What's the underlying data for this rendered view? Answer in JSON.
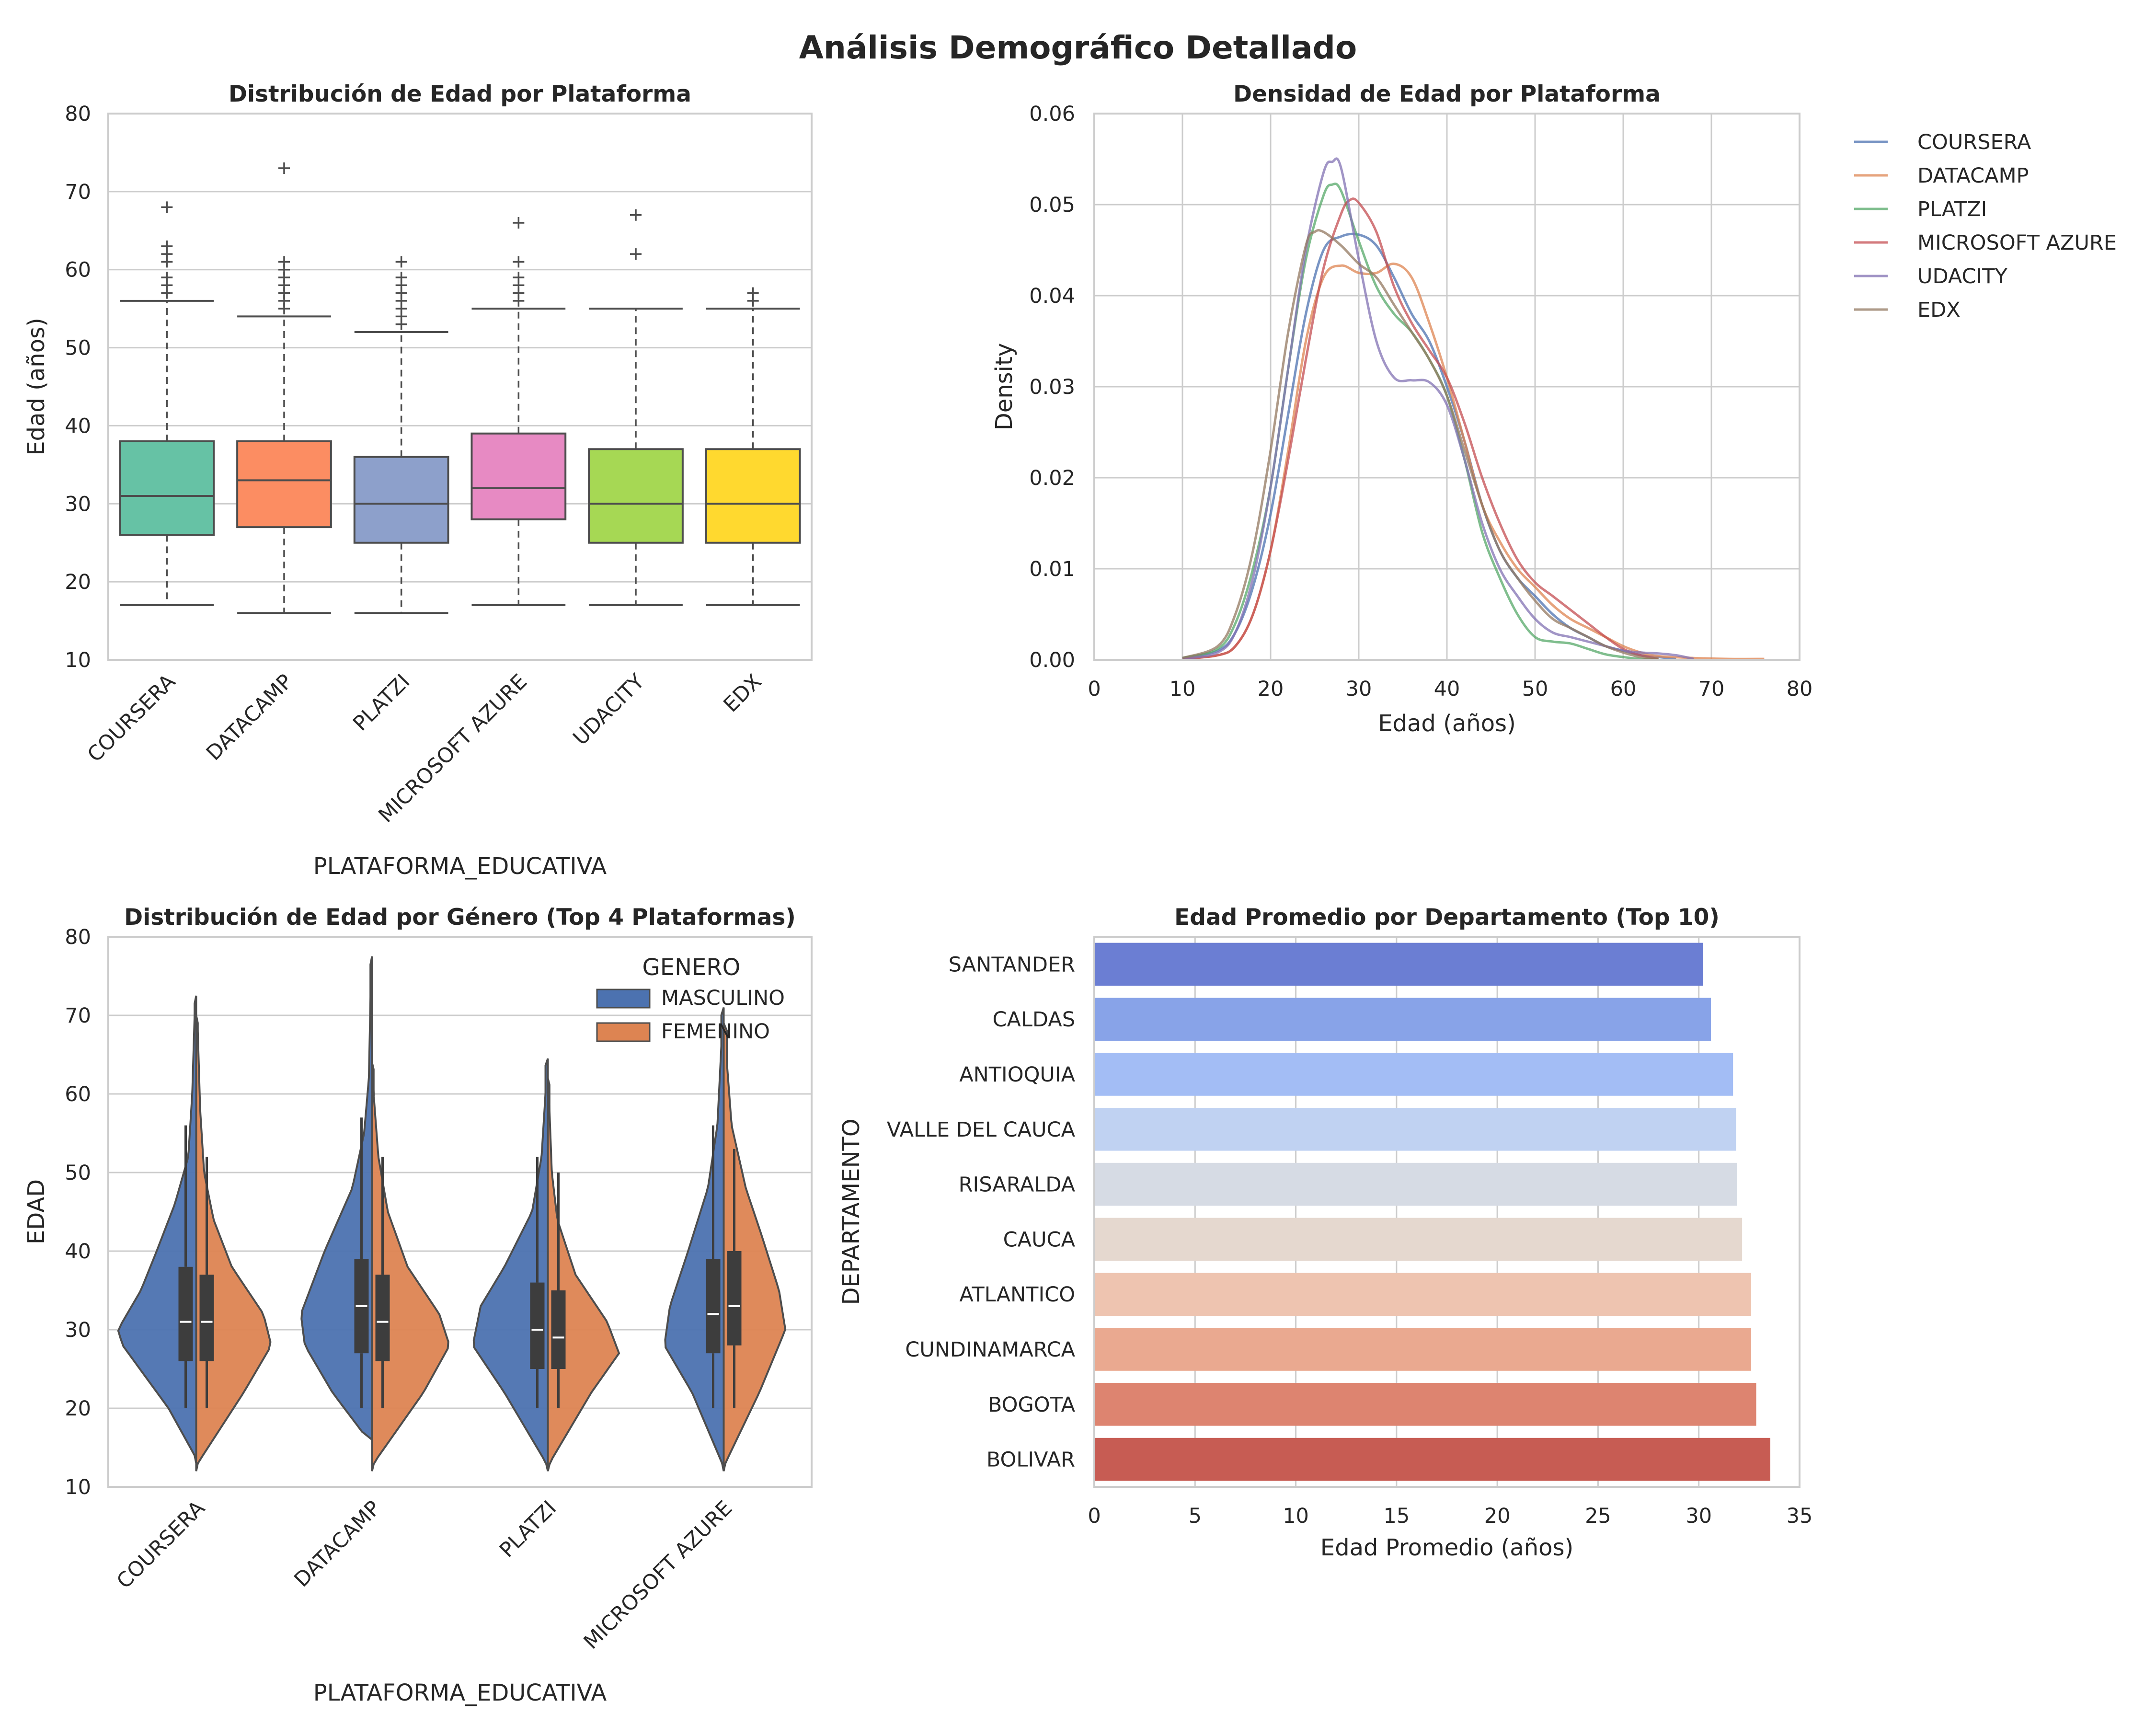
{
  "title": "Análisis Demográfico Detallado",
  "chart_data": [
    {
      "type": "box",
      "title": "Distribución de Edad por Plataforma",
      "xlabel": "PLATAFORMA_EDUCATIVA",
      "ylabel": "Edad (años)",
      "ylim": [
        10,
        80
      ],
      "yticks": [
        10,
        20,
        30,
        40,
        50,
        60,
        70,
        80
      ],
      "grid": "y",
      "categories": [
        "COURSERA",
        "DATACAMP",
        "PLATZI",
        "MICROSOFT AZURE",
        "UDACITY",
        "EDX"
      ],
      "colors": [
        "#66c2a5",
        "#fc8d62",
        "#8da0cb",
        "#e78ac3",
        "#a6d854",
        "#ffd92f"
      ],
      "boxes": [
        {
          "min": 17,
          "q1": 26,
          "median": 31,
          "q3": 38,
          "max": 56,
          "outliers": [
            57,
            58,
            59,
            61,
            62,
            63,
            68
          ]
        },
        {
          "min": 16,
          "q1": 27,
          "median": 33,
          "q3": 38,
          "max": 54,
          "outliers": [
            55,
            56,
            57,
            58,
            59,
            60,
            61,
            73
          ]
        },
        {
          "min": 16,
          "q1": 25,
          "median": 30,
          "q3": 36,
          "max": 52,
          "outliers": [
            53,
            54,
            55,
            56,
            57,
            58,
            59,
            61
          ]
        },
        {
          "min": 17,
          "q1": 28,
          "median": 32,
          "q3": 39,
          "max": 55,
          "outliers": [
            56,
            57,
            58,
            59,
            61,
            66
          ]
        },
        {
          "min": 17,
          "q1": 25,
          "median": 30,
          "q3": 37,
          "max": 55,
          "outliers": [
            62,
            67
          ]
        },
        {
          "min": 17,
          "q1": 25,
          "median": 30,
          "q3": 37,
          "max": 55,
          "outliers": [
            56,
            57
          ]
        }
      ]
    },
    {
      "type": "line",
      "title": "Densidad de Edad por Plataforma",
      "xlabel": "Edad (años)",
      "ylabel": "Density",
      "xlim": [
        0,
        80
      ],
      "ylim": [
        0,
        0.06
      ],
      "xticks": [
        0,
        10,
        20,
        30,
        40,
        50,
        60,
        70,
        80
      ],
      "yticks": [
        "0.00",
        "0.01",
        "0.02",
        "0.03",
        "0.04",
        "0.05",
        "0.06"
      ],
      "grid": "both",
      "legend": "outside-right",
      "series": [
        {
          "name": "COURSERA",
          "color": "#4c72b0",
          "x": [
            10,
            14,
            16,
            18,
            20,
            22,
            24,
            26,
            28,
            30,
            32,
            34,
            36,
            38,
            40,
            42,
            44,
            46,
            48,
            50,
            52,
            54,
            56,
            58,
            60,
            62,
            64,
            66
          ],
          "y": [
            0.0002,
            0.001,
            0.003,
            0.008,
            0.016,
            0.027,
            0.038,
            0.045,
            0.0465,
            0.0467,
            0.0455,
            0.042,
            0.038,
            0.035,
            0.03,
            0.024,
            0.017,
            0.012,
            0.009,
            0.007,
            0.005,
            0.0035,
            0.0025,
            0.0015,
            0.001,
            0.0005,
            0.0003,
            0.0001
          ]
        },
        {
          "name": "DATACAMP",
          "color": "#dd8452",
          "x": [
            10,
            14,
            16,
            18,
            20,
            22,
            24,
            26,
            28,
            30,
            32,
            34,
            36,
            38,
            40,
            42,
            44,
            46,
            48,
            50,
            52,
            54,
            56,
            58,
            60,
            62,
            64,
            68,
            72,
            76
          ],
          "y": [
            0.0001,
            0.0005,
            0.0015,
            0.005,
            0.012,
            0.023,
            0.035,
            0.042,
            0.0433,
            0.0425,
            0.0425,
            0.0435,
            0.042,
            0.037,
            0.031,
            0.024,
            0.017,
            0.013,
            0.01,
            0.008,
            0.006,
            0.0045,
            0.0035,
            0.0025,
            0.0015,
            0.0008,
            0.0004,
            0.0002,
            0.0001,
            0.0001
          ]
        },
        {
          "name": "PLATZI",
          "color": "#55a868",
          "x": [
            10,
            14,
            16,
            18,
            20,
            22,
            24,
            26,
            27,
            28,
            30,
            32,
            34,
            36,
            38,
            40,
            42,
            44,
            46,
            48,
            50,
            52,
            54,
            56,
            58,
            60,
            62,
            64
          ],
          "y": [
            0.0002,
            0.0012,
            0.004,
            0.01,
            0.019,
            0.032,
            0.044,
            0.051,
            0.0522,
            0.0515,
            0.046,
            0.041,
            0.038,
            0.036,
            0.033,
            0.029,
            0.022,
            0.014,
            0.009,
            0.005,
            0.0025,
            0.002,
            0.0018,
            0.0012,
            0.0006,
            0.0003,
            0.0001,
            0.0001
          ]
        },
        {
          "name": "MICROSOFT AZURE",
          "color": "#c44e52",
          "x": [
            10,
            14,
            16,
            18,
            20,
            22,
            24,
            26,
            28,
            29,
            30,
            32,
            34,
            36,
            38,
            40,
            42,
            44,
            46,
            48,
            50,
            52,
            54,
            56,
            58,
            60,
            62,
            64
          ],
          "y": [
            0.0001,
            0.0005,
            0.0015,
            0.005,
            0.012,
            0.022,
            0.033,
            0.043,
            0.049,
            0.0505,
            0.0502,
            0.047,
            0.041,
            0.037,
            0.034,
            0.031,
            0.026,
            0.02,
            0.015,
            0.011,
            0.0085,
            0.007,
            0.0055,
            0.004,
            0.0025,
            0.0012,
            0.0005,
            0.0001
          ]
        },
        {
          "name": "UDACITY",
          "color": "#8172b3",
          "x": [
            10,
            14,
            16,
            18,
            20,
            22,
            24,
            26,
            27,
            28,
            30,
            32,
            34,
            36,
            38,
            40,
            42,
            44,
            46,
            48,
            50,
            52,
            54,
            56,
            58,
            60,
            62,
            64,
            66,
            68
          ],
          "y": [
            0.0001,
            0.0008,
            0.003,
            0.009,
            0.019,
            0.032,
            0.045,
            0.0535,
            0.0547,
            0.054,
            0.044,
            0.035,
            0.031,
            0.0307,
            0.0305,
            0.028,
            0.022,
            0.015,
            0.01,
            0.007,
            0.0045,
            0.003,
            0.0025,
            0.002,
            0.0015,
            0.001,
            0.0008,
            0.0007,
            0.0005,
            0.0001
          ]
        },
        {
          "name": "EDX",
          "color": "#937860",
          "x": [
            10,
            14,
            16,
            18,
            20,
            22,
            24,
            25,
            26,
            28,
            30,
            32,
            34,
            36,
            38,
            40,
            42,
            44,
            46,
            48,
            50,
            52,
            54,
            56,
            58,
            60,
            62,
            64
          ],
          "y": [
            0.0002,
            0.0015,
            0.005,
            0.012,
            0.023,
            0.036,
            0.0455,
            0.047,
            0.047,
            0.0455,
            0.0435,
            0.042,
            0.039,
            0.036,
            0.033,
            0.029,
            0.023,
            0.017,
            0.012,
            0.009,
            0.0065,
            0.0045,
            0.0035,
            0.0025,
            0.0015,
            0.0008,
            0.0003,
            0.0001
          ]
        }
      ]
    },
    {
      "type": "violin",
      "title": "Distribución de Edad por Género (Top 4 Plataformas)",
      "xlabel": "PLATAFORMA_EDUCATIVA",
      "ylabel": "EDAD",
      "ylim": [
        10,
        80
      ],
      "yticks": [
        10,
        20,
        30,
        40,
        50,
        60,
        70,
        80
      ],
      "grid": "y",
      "legend": {
        "title": "GENERO",
        "position": "top-right"
      },
      "categories": [
        "COURSERA",
        "DATACAMP",
        "PLATZI",
        "MICROSOFT AZURE"
      ],
      "hue": [
        {
          "name": "MASCULINO",
          "color": "#4c72b0"
        },
        {
          "name": "FEMENINO",
          "color": "#dd8452"
        }
      ],
      "violins": [
        {
          "masculino": {
            "min": 13,
            "max": 72.5,
            "q1": 26,
            "median": 31,
            "q3": 38,
            "whisker_hi": 56,
            "width": [
              0.02,
              0.35,
              0.93,
              0.99,
              0.7,
              0.5,
              0.27,
              0.1,
              0.05,
              0.02
            ],
            "width_y": [
              14,
              20,
              28,
              30,
              35,
              40,
              46,
              52,
              60,
              70
            ]
          },
          "femenino": {
            "min": 12,
            "max": 70,
            "q1": 26,
            "median": 31,
            "q3": 37,
            "whisker_hi": 52,
            "width": [
              0.02,
              0.6,
              0.95,
              0.85,
              0.45,
              0.22,
              0.1,
              0.05,
              0.02
            ],
            "width_y": [
              13,
              22,
              28,
              32,
              38,
              44,
              50,
              58,
              68
            ]
          }
        },
        {
          "masculino": {
            "min": 16,
            "max": 77.5,
            "q1": 27,
            "median": 33,
            "q3": 39,
            "whisker_hi": 57,
            "width": [
              0.05,
              0.5,
              0.85,
              0.9,
              0.6,
              0.25,
              0.1,
              0.04,
              0.02
            ],
            "width_y": [
              16,
              22,
              28,
              32,
              40,
              48,
              55,
              62,
              72
            ]
          },
          "femenino": {
            "min": 12,
            "max": 64,
            "q1": 26,
            "median": 31,
            "q3": 37,
            "whisker_hi": 52,
            "width": [
              0.02,
              0.65,
              0.98,
              0.85,
              0.45,
              0.2,
              0.08,
              0.02
            ],
            "width_y": [
              13,
              22,
              28,
              32,
              38,
              45,
              52,
              60
            ]
          }
        },
        {
          "masculino": {
            "min": 12,
            "max": 64.5,
            "q1": 25,
            "median": 30,
            "q3": 36,
            "whisker_hi": 52,
            "width": [
              0.02,
              0.55,
              0.95,
              0.85,
              0.55,
              0.2,
              0.08,
              0.03
            ],
            "width_y": [
              13,
              22,
              28,
              33,
              38,
              45,
              52,
              60
            ]
          },
          "femenino": {
            "min": 12,
            "max": 62,
            "q1": 25,
            "median": 29,
            "q3": 35,
            "whisker_hi": 50,
            "width": [
              0.02,
              0.55,
              0.9,
              0.75,
              0.35,
              0.12,
              0.05,
              0.02
            ],
            "width_y": [
              13,
              22,
              27,
              31,
              37,
              44,
              50,
              58
            ]
          }
        },
        {
          "masculino": {
            "min": 12,
            "max": 71,
            "q1": 27,
            "median": 32,
            "q3": 39,
            "whisker_hi": 56,
            "width": [
              0.02,
              0.4,
              0.75,
              0.68,
              0.45,
              0.2,
              0.08,
              0.03
            ],
            "width_y": [
              13,
              22,
              28,
              33,
              40,
              48,
              56,
              66
            ]
          },
          "femenino": {
            "min": 12,
            "max": 69,
            "q1": 28,
            "median": 33,
            "q3": 40,
            "whisker_hi": 53,
            "width": [
              0.02,
              0.45,
              0.78,
              0.7,
              0.48,
              0.28,
              0.1,
              0.04
            ],
            "width_y": [
              13,
              22,
              30,
              35,
              42,
              48,
              56,
              64
            ]
          }
        }
      ]
    },
    {
      "type": "bar",
      "orientation": "horizontal",
      "title": "Edad Promedio por Departamento (Top 10)",
      "xlabel": "Edad Promedio (años)",
      "ylabel": "DEPARTAMENTO",
      "xlim": [
        0,
        35
      ],
      "xticks": [
        0,
        5,
        10,
        15,
        20,
        25,
        30,
        35
      ],
      "grid": "x",
      "categories": [
        "SANTANDER",
        "CALDAS",
        "ANTIOQUIA",
        "VALLE DEL CAUCA",
        "RISARALDA",
        "CAUCA",
        "ATLANTICO",
        "CUNDINAMARCA",
        "BOGOTA",
        "BOLIVAR"
      ],
      "values": [
        30.2,
        30.6,
        31.7,
        31.85,
        31.9,
        32.15,
        32.6,
        32.6,
        32.85,
        33.55
      ],
      "colors": [
        "#6b7ed3",
        "#88a3e8",
        "#a3bdf5",
        "#c0d2f2",
        "#d6dbe4",
        "#e5d8cf",
        "#eec4b0",
        "#eaa990",
        "#dd8470",
        "#c75c53"
      ]
    }
  ]
}
